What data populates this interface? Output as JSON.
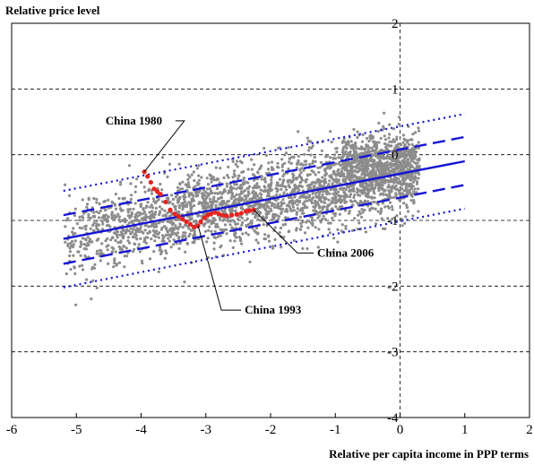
{
  "chart_data": {
    "type": "scatter",
    "title": "",
    "ylabel": "Relative price level",
    "xlabel": "Relative per capita income in PPP terms",
    "xlim": [
      -6,
      2
    ],
    "ylim": [
      -4,
      2
    ],
    "xticks": [
      -6,
      -5,
      -4,
      -3,
      -2,
      -1,
      0,
      1,
      2
    ],
    "yticks": [
      -4,
      -3,
      -2,
      -1,
      0,
      1,
      2
    ],
    "x_tick_labels": [
      "-6",
      "-5",
      "-4",
      "-3",
      "-2",
      "-1",
      "0",
      "1",
      "2"
    ],
    "y_tick_labels": [
      "-4",
      "-3",
      "-2",
      "-1",
      "0",
      "1",
      "2"
    ],
    "grid": "dashed horizontal lines at y = 1, 0, -1, -2, -3; dashed vertical line at x = 0",
    "colors": {
      "scatter": "#8c8c8c",
      "china": "#e8231e",
      "fit": "#1515d6",
      "axis": "#000000"
    },
    "cloud": {
      "x_range": [
        -5.2,
        0.3
      ],
      "slope": 0.19,
      "intercept": -0.29,
      "spread_sd": 0.3
    },
    "lines": [
      {
        "role": "fit",
        "style": "solid",
        "points": [
          [
            -5.2,
            -1.28
          ],
          [
            1.0,
            -0.1
          ]
        ]
      },
      {
        "role": "band-inner-upper",
        "style": "dashed",
        "points": [
          [
            -5.2,
            -0.92
          ],
          [
            1.0,
            0.27
          ]
        ]
      },
      {
        "role": "band-inner-lower",
        "style": "dashed",
        "points": [
          [
            -5.2,
            -1.66
          ],
          [
            1.0,
            -0.46
          ]
        ]
      },
      {
        "role": "band-outer-upper",
        "style": "dotted",
        "points": [
          [
            -5.2,
            -0.55
          ],
          [
            1.0,
            0.62
          ]
        ]
      },
      {
        "role": "band-outer-lower",
        "style": "dotted",
        "points": [
          [
            -5.2,
            -2.02
          ],
          [
            1.0,
            -0.82
          ]
        ]
      }
    ],
    "series": [
      {
        "role": "china",
        "x": [
          -3.95,
          -3.9,
          -3.85,
          -3.8,
          -3.75,
          -3.7,
          -3.62,
          -3.55,
          -3.48,
          -3.42,
          -3.36,
          -3.3,
          -3.24,
          -3.18,
          -3.12,
          -3.08,
          -3.02,
          -2.97,
          -2.92,
          -2.86,
          -2.8,
          -2.74,
          -2.68,
          -2.6,
          -2.52,
          -2.45,
          -2.38,
          -2.32,
          -2.26
        ],
        "y": [
          -0.26,
          -0.33,
          -0.42,
          -0.52,
          -0.56,
          -0.6,
          -0.72,
          -0.84,
          -0.9,
          -0.94,
          -0.98,
          -1.02,
          -1.06,
          -1.1,
          -1.08,
          -1.02,
          -0.96,
          -0.92,
          -0.9,
          -0.88,
          -0.9,
          -0.92,
          -0.93,
          -0.92,
          -0.91,
          -0.89,
          -0.86,
          -0.85,
          -0.84
        ]
      }
    ],
    "annotations": [
      {
        "text": "China 1980",
        "x": -4.55,
        "y": 0.46,
        "arrow_to": [
          -3.95,
          -0.26
        ]
      },
      {
        "text": "China 1993",
        "x": -2.4,
        "y": -2.42,
        "arrow_to": [
          -3.12,
          -1.08
        ]
      },
      {
        "text": "China 2006",
        "x": -1.28,
        "y": -1.55,
        "arrow_to": [
          -2.26,
          -0.84
        ]
      }
    ]
  }
}
